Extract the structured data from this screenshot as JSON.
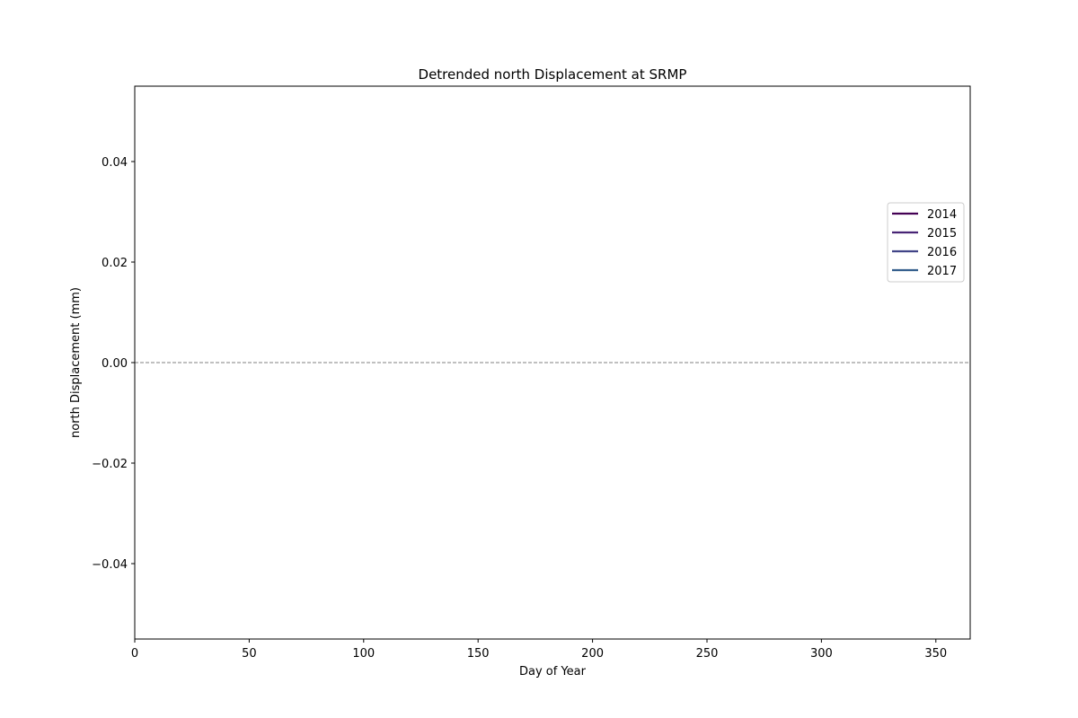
{
  "chart_data": {
    "type": "line",
    "title": "Detrended north Displacement at SRMP",
    "xlabel": "Day of Year",
    "ylabel": "north Displacement (mm)",
    "xlim": [
      0,
      365
    ],
    "ylim": [
      -0.055,
      0.055
    ],
    "xticks": [
      0,
      50,
      100,
      150,
      200,
      250,
      300,
      350
    ],
    "xtick_labels": [
      "0",
      "50",
      "100",
      "150",
      "200",
      "250",
      "300",
      "350"
    ],
    "yticks": [
      -0.04,
      -0.02,
      0.0,
      0.02,
      0.04
    ],
    "ytick_labels": [
      "−0.04",
      "−0.02",
      "0.00",
      "0.02",
      "0.04"
    ],
    "grid": false,
    "reference_line": {
      "y": 0,
      "style": "dashed",
      "color": "#808080"
    },
    "legend_position": "center-right",
    "series": [
      {
        "name": "2014",
        "color": "#440154",
        "x": [],
        "y": []
      },
      {
        "name": "2015",
        "color": "#482475",
        "x": [],
        "y": []
      },
      {
        "name": "2016",
        "color": "#414487",
        "x": [],
        "y": []
      },
      {
        "name": "2017",
        "color": "#355f8d",
        "x": [],
        "y": []
      }
    ]
  }
}
